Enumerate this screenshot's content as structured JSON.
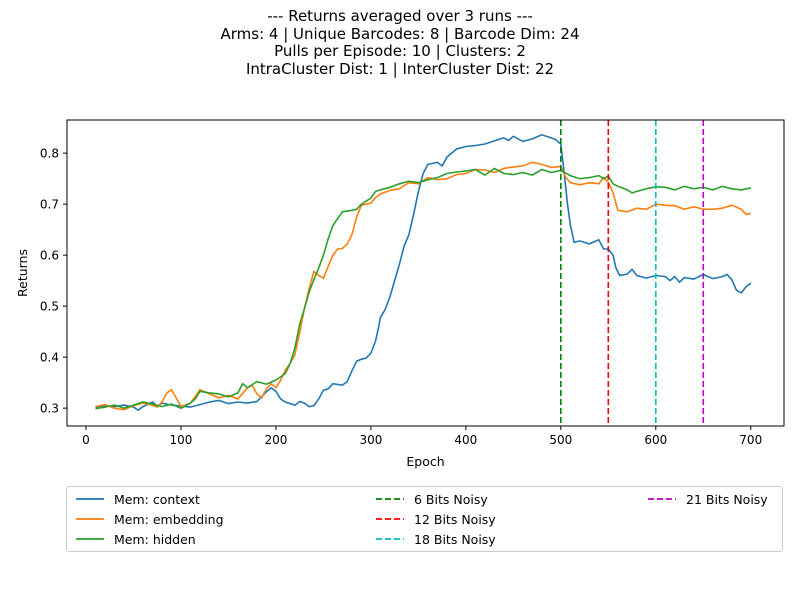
{
  "title_lines": [
    "--- Returns averaged over 3 runs ---",
    "Arms: 4 | Unique Barcodes: 8 | Barcode Dim: 24",
    "Pulls per Episode: 10 | Clusters: 2",
    "IntraCluster Dist: 1 | InterCluster Dist: 22"
  ],
  "chart_data": {
    "type": "line",
    "xlabel": "Epoch",
    "ylabel": "Returns",
    "xlim": [
      -20,
      735
    ],
    "ylim": [
      0.265,
      0.865
    ],
    "xticks": [
      0,
      100,
      200,
      300,
      400,
      500,
      600,
      700
    ],
    "yticks": [
      0.3,
      0.4,
      0.5,
      0.6,
      0.7,
      0.8
    ],
    "grid": false,
    "legend_position": "bottom",
    "series": [
      {
        "name": "Mem: context",
        "color": "#1f77b4",
        "points": [
          [
            10,
            0.302
          ],
          [
            20,
            0.305
          ],
          [
            30,
            0.303
          ],
          [
            40,
            0.306
          ],
          [
            50,
            0.302
          ],
          [
            55,
            0.296
          ],
          [
            60,
            0.303
          ],
          [
            70,
            0.312
          ],
          [
            75,
            0.303
          ],
          [
            80,
            0.31
          ],
          [
            90,
            0.306
          ],
          [
            100,
            0.304
          ],
          [
            110,
            0.302
          ],
          [
            120,
            0.307
          ],
          [
            130,
            0.312
          ],
          [
            140,
            0.315
          ],
          [
            150,
            0.309
          ],
          [
            160,
            0.312
          ],
          [
            170,
            0.31
          ],
          [
            180,
            0.313
          ],
          [
            190,
            0.332
          ],
          [
            195,
            0.34
          ],
          [
            200,
            0.333
          ],
          [
            205,
            0.318
          ],
          [
            210,
            0.312
          ],
          [
            215,
            0.309
          ],
          [
            220,
            0.306
          ],
          [
            225,
            0.313
          ],
          [
            230,
            0.31
          ],
          [
            235,
            0.303
          ],
          [
            240,
            0.305
          ],
          [
            245,
            0.318
          ],
          [
            250,
            0.335
          ],
          [
            255,
            0.338
          ],
          [
            260,
            0.348
          ],
          [
            270,
            0.345
          ],
          [
            275,
            0.352
          ],
          [
            280,
            0.373
          ],
          [
            285,
            0.392
          ],
          [
            290,
            0.396
          ],
          [
            295,
            0.398
          ],
          [
            300,
            0.408
          ],
          [
            305,
            0.432
          ],
          [
            308,
            0.458
          ],
          [
            310,
            0.478
          ],
          [
            315,
            0.493
          ],
          [
            320,
            0.518
          ],
          [
            325,
            0.55
          ],
          [
            330,
            0.582
          ],
          [
            335,
            0.618
          ],
          [
            340,
            0.64
          ],
          [
            345,
            0.68
          ],
          [
            350,
            0.725
          ],
          [
            355,
            0.76
          ],
          [
            360,
            0.778
          ],
          [
            370,
            0.782
          ],
          [
            375,
            0.775
          ],
          [
            380,
            0.792
          ],
          [
            390,
            0.808
          ],
          [
            400,
            0.813
          ],
          [
            410,
            0.815
          ],
          [
            420,
            0.818
          ],
          [
            430,
            0.824
          ],
          [
            440,
            0.83
          ],
          [
            445,
            0.825
          ],
          [
            450,
            0.833
          ],
          [
            460,
            0.823
          ],
          [
            470,
            0.828
          ],
          [
            480,
            0.836
          ],
          [
            490,
            0.83
          ],
          [
            495,
            0.826
          ],
          [
            500,
            0.818
          ],
          [
            503,
            0.77
          ],
          [
            507,
            0.7
          ],
          [
            510,
            0.66
          ],
          [
            514,
            0.625
          ],
          [
            520,
            0.628
          ],
          [
            530,
            0.622
          ],
          [
            540,
            0.63
          ],
          [
            545,
            0.612
          ],
          [
            550,
            0.612
          ],
          [
            555,
            0.6
          ],
          [
            558,
            0.575
          ],
          [
            562,
            0.56
          ],
          [
            570,
            0.563
          ],
          [
            575,
            0.572
          ],
          [
            580,
            0.56
          ],
          [
            590,
            0.555
          ],
          [
            600,
            0.56
          ],
          [
            610,
            0.558
          ],
          [
            615,
            0.55
          ],
          [
            620,
            0.558
          ],
          [
            625,
            0.547
          ],
          [
            630,
            0.556
          ],
          [
            640,
            0.553
          ],
          [
            650,
            0.562
          ],
          [
            660,
            0.554
          ],
          [
            670,
            0.558
          ],
          [
            675,
            0.562
          ],
          [
            680,
            0.552
          ],
          [
            685,
            0.531
          ],
          [
            690,
            0.526
          ],
          [
            695,
            0.538
          ],
          [
            700,
            0.545
          ]
        ]
      },
      {
        "name": "Mem: embedding",
        "color": "#ff7f0e",
        "points": [
          [
            10,
            0.303
          ],
          [
            20,
            0.307
          ],
          [
            30,
            0.3
          ],
          [
            40,
            0.297
          ],
          [
            50,
            0.305
          ],
          [
            60,
            0.31
          ],
          [
            70,
            0.306
          ],
          [
            75,
            0.302
          ],
          [
            80,
            0.312
          ],
          [
            85,
            0.33
          ],
          [
            90,
            0.336
          ],
          [
            95,
            0.32
          ],
          [
            100,
            0.303
          ],
          [
            110,
            0.31
          ],
          [
            120,
            0.336
          ],
          [
            130,
            0.328
          ],
          [
            140,
            0.32
          ],
          [
            150,
            0.325
          ],
          [
            160,
            0.318
          ],
          [
            170,
            0.34
          ],
          [
            175,
            0.345
          ],
          [
            180,
            0.328
          ],
          [
            185,
            0.32
          ],
          [
            190,
            0.338
          ],
          [
            195,
            0.348
          ],
          [
            200,
            0.34
          ],
          [
            205,
            0.355
          ],
          [
            210,
            0.375
          ],
          [
            215,
            0.388
          ],
          [
            220,
            0.405
          ],
          [
            225,
            0.448
          ],
          [
            230,
            0.495
          ],
          [
            235,
            0.535
          ],
          [
            240,
            0.568
          ],
          [
            245,
            0.56
          ],
          [
            250,
            0.555
          ],
          [
            255,
            0.578
          ],
          [
            260,
            0.6
          ],
          [
            265,
            0.612
          ],
          [
            270,
            0.613
          ],
          [
            275,
            0.622
          ],
          [
            280,
            0.64
          ],
          [
            285,
            0.675
          ],
          [
            290,
            0.698
          ],
          [
            300,
            0.702
          ],
          [
            305,
            0.713
          ],
          [
            310,
            0.72
          ],
          [
            320,
            0.727
          ],
          [
            330,
            0.73
          ],
          [
            340,
            0.742
          ],
          [
            350,
            0.74
          ],
          [
            360,
            0.752
          ],
          [
            370,
            0.748
          ],
          [
            380,
            0.75
          ],
          [
            390,
            0.758
          ],
          [
            400,
            0.76
          ],
          [
            410,
            0.768
          ],
          [
            420,
            0.767
          ],
          [
            430,
            0.762
          ],
          [
            440,
            0.77
          ],
          [
            450,
            0.773
          ],
          [
            460,
            0.775
          ],
          [
            470,
            0.782
          ],
          [
            480,
            0.778
          ],
          [
            490,
            0.772
          ],
          [
            500,
            0.774
          ],
          [
            505,
            0.753
          ],
          [
            510,
            0.742
          ],
          [
            520,
            0.738
          ],
          [
            530,
            0.742
          ],
          [
            540,
            0.74
          ],
          [
            545,
            0.752
          ],
          [
            550,
            0.743
          ],
          [
            555,
            0.722
          ],
          [
            560,
            0.688
          ],
          [
            570,
            0.685
          ],
          [
            580,
            0.692
          ],
          [
            590,
            0.69
          ],
          [
            600,
            0.7
          ],
          [
            610,
            0.698
          ],
          [
            620,
            0.697
          ],
          [
            630,
            0.69
          ],
          [
            640,
            0.695
          ],
          [
            650,
            0.69
          ],
          [
            660,
            0.69
          ],
          [
            670,
            0.692
          ],
          [
            680,
            0.698
          ],
          [
            690,
            0.69
          ],
          [
            695,
            0.68
          ],
          [
            700,
            0.682
          ]
        ]
      },
      {
        "name": "Mem: hidden",
        "color": "#2ca02c",
        "points": [
          [
            10,
            0.299
          ],
          [
            20,
            0.302
          ],
          [
            30,
            0.306
          ],
          [
            40,
            0.3
          ],
          [
            50,
            0.306
          ],
          [
            60,
            0.312
          ],
          [
            70,
            0.308
          ],
          [
            80,
            0.303
          ],
          [
            90,
            0.308
          ],
          [
            100,
            0.3
          ],
          [
            110,
            0.31
          ],
          [
            115,
            0.318
          ],
          [
            120,
            0.333
          ],
          [
            130,
            0.33
          ],
          [
            140,
            0.328
          ],
          [
            150,
            0.322
          ],
          [
            160,
            0.33
          ],
          [
            165,
            0.348
          ],
          [
            170,
            0.34
          ],
          [
            180,
            0.352
          ],
          [
            190,
            0.347
          ],
          [
            200,
            0.355
          ],
          [
            210,
            0.368
          ],
          [
            215,
            0.388
          ],
          [
            220,
            0.418
          ],
          [
            225,
            0.465
          ],
          [
            230,
            0.495
          ],
          [
            235,
            0.528
          ],
          [
            240,
            0.552
          ],
          [
            245,
            0.575
          ],
          [
            250,
            0.6
          ],
          [
            255,
            0.632
          ],
          [
            260,
            0.658
          ],
          [
            265,
            0.672
          ],
          [
            270,
            0.685
          ],
          [
            280,
            0.688
          ],
          [
            285,
            0.69
          ],
          [
            290,
            0.7
          ],
          [
            300,
            0.712
          ],
          [
            305,
            0.725
          ],
          [
            310,
            0.728
          ],
          [
            320,
            0.733
          ],
          [
            330,
            0.74
          ],
          [
            340,
            0.745
          ],
          [
            350,
            0.742
          ],
          [
            360,
            0.748
          ],
          [
            370,
            0.752
          ],
          [
            380,
            0.76
          ],
          [
            390,
            0.763
          ],
          [
            400,
            0.765
          ],
          [
            410,
            0.768
          ],
          [
            420,
            0.757
          ],
          [
            430,
            0.77
          ],
          [
            440,
            0.76
          ],
          [
            450,
            0.758
          ],
          [
            460,
            0.762
          ],
          [
            470,
            0.757
          ],
          [
            480,
            0.768
          ],
          [
            490,
            0.762
          ],
          [
            500,
            0.766
          ],
          [
            510,
            0.756
          ],
          [
            520,
            0.75
          ],
          [
            530,
            0.752
          ],
          [
            540,
            0.756
          ],
          [
            545,
            0.75
          ],
          [
            550,
            0.755
          ],
          [
            555,
            0.74
          ],
          [
            560,
            0.735
          ],
          [
            570,
            0.728
          ],
          [
            575,
            0.722
          ],
          [
            580,
            0.725
          ],
          [
            590,
            0.73
          ],
          [
            600,
            0.734
          ],
          [
            610,
            0.733
          ],
          [
            620,
            0.728
          ],
          [
            630,
            0.735
          ],
          [
            640,
            0.73
          ],
          [
            650,
            0.733
          ],
          [
            660,
            0.728
          ],
          [
            670,
            0.735
          ],
          [
            680,
            0.73
          ],
          [
            690,
            0.728
          ],
          [
            700,
            0.732
          ]
        ]
      }
    ],
    "vlines": [
      {
        "name": "6 Bits Noisy",
        "x": 500,
        "color": "#008000"
      },
      {
        "name": "12 Bits Noisy",
        "x": 550,
        "color": "#ff0000"
      },
      {
        "name": "18 Bits Noisy",
        "x": 600,
        "color": "#00bfbf"
      },
      {
        "name": "21 Bits Noisy",
        "x": 650,
        "color": "#bf00bf"
      }
    ]
  }
}
